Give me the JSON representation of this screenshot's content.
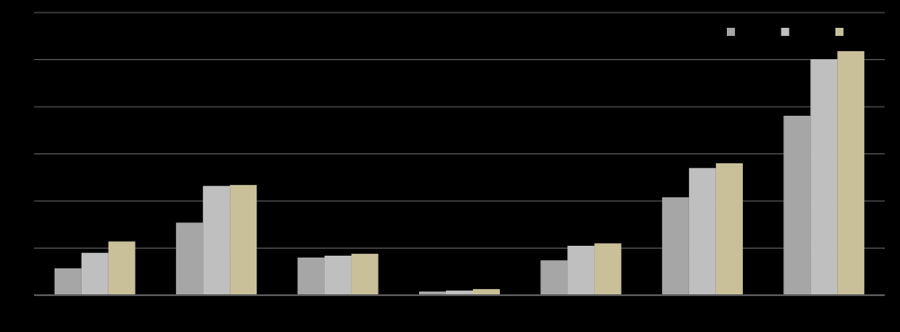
{
  "chart_data": {
    "type": "bar",
    "categories": [
      null,
      null,
      null,
      null,
      null,
      null,
      null
    ],
    "series": [
      {
        "color": "#a6a6a6",
        "values": [
          0.57,
          1.54,
          0.8,
          0.08,
          0.74,
          2.08,
          3.81
        ]
      },
      {
        "color": "#bfbfbf",
        "values": [
          0.9,
          2.32,
          0.84,
          0.1,
          1.05,
          2.7,
          5.01
        ]
      },
      {
        "color": "#c9c09a",
        "values": [
          1.14,
          2.34,
          0.88,
          0.13,
          1.1,
          2.8,
          5.18
        ]
      }
    ],
    "ylim": [
      0,
      6
    ],
    "yticks": [
      0,
      1,
      2,
      3,
      4,
      5,
      6
    ],
    "grid": true,
    "legend": "top-right"
  }
}
